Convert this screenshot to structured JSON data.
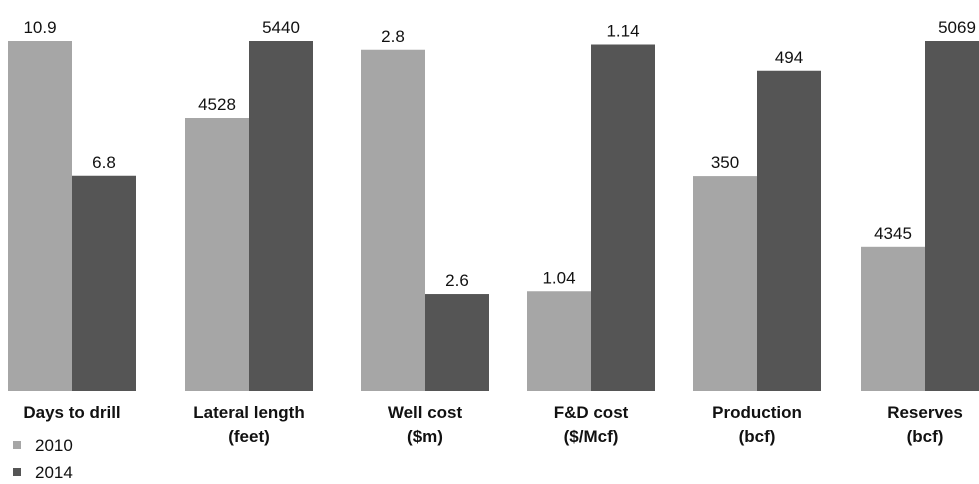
{
  "chart_data": {
    "type": "bar",
    "normalization": "per-category",
    "categories": [
      [
        "Days to drill"
      ],
      [
        "Lateral length",
        "(feet)"
      ],
      [
        "Well cost",
        "($m)"
      ],
      [
        "F&D cost",
        "($/Mcf)"
      ],
      [
        "Production",
        "(bcf)"
      ],
      [
        "Reserves",
        "(bcf)"
      ]
    ],
    "series": [
      {
        "name": "2010",
        "color": "#a6a6a6",
        "values": [
          10.9,
          4528,
          2.8,
          1.04,
          350,
          4345
        ],
        "labels": [
          "10.9",
          "4528",
          "2.8",
          "1.04",
          "350",
          "4345"
        ]
      },
      {
        "name": "2014",
        "color": "#555555",
        "values": [
          6.8,
          5440,
          2.6,
          1.14,
          494,
          5069
        ],
        "labels": [
          "6.8",
          "5440",
          "2.6",
          "1.14",
          "494",
          "5069"
        ]
      }
    ],
    "bar_fractions": [
      [
        1.0,
        0.615
      ],
      [
        0.78,
        1.0
      ],
      [
        0.975,
        0.277
      ],
      [
        0.285,
        0.99
      ],
      [
        0.614,
        0.915
      ],
      [
        0.412,
        1.0
      ]
    ],
    "grid": false,
    "legend_position": "bottom-left"
  }
}
